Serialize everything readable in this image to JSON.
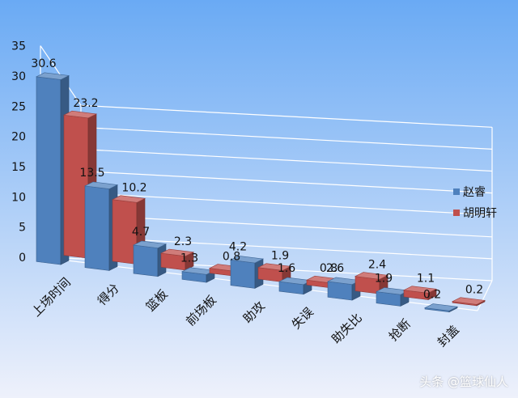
{
  "chart_data": {
    "type": "bar",
    "title": "",
    "xlabel": "",
    "ylabel": "",
    "categories": [
      "上场时间",
      "得分",
      "篮板",
      "前场板",
      "助攻",
      "失误",
      "助失比",
      "抢断",
      "封盖"
    ],
    "series": [
      {
        "name": "赵睿",
        "values": [
          30.6,
          13.5,
          4.7,
          1.3,
          4.2,
          1.6,
          2.6,
          1.9,
          0.2
        ]
      },
      {
        "name": "胡明轩",
        "values": [
          23.2,
          10.2,
          2.3,
          0.8,
          1.9,
          0.8,
          2.4,
          1.1,
          0.2
        ]
      }
    ],
    "value_labels": [
      [
        "30.6",
        "13.5",
        "4.7",
        "1.3",
        "4.2",
        "1.6",
        "2.6",
        "1.9",
        "0.2"
      ],
      [
        "23.2",
        "10.2",
        "2.3",
        "0.8",
        "1.9",
        "0.8",
        "2.4",
        "1.1",
        "0.2"
      ]
    ],
    "yticks": [
      "0",
      "5",
      "10",
      "15",
      "20",
      "25",
      "30",
      "35"
    ],
    "ylim": [
      0,
      35
    ],
    "grid": true,
    "legend_position": "right",
    "three_d": true,
    "colors": {
      "series": [
        "#4f81bd",
        "#c0504d"
      ],
      "background_top": "#6aaaf4",
      "background_bottom": "#eef1fb",
      "grid": "#ffffff"
    }
  },
  "watermark": "头条 @篮球仙人"
}
